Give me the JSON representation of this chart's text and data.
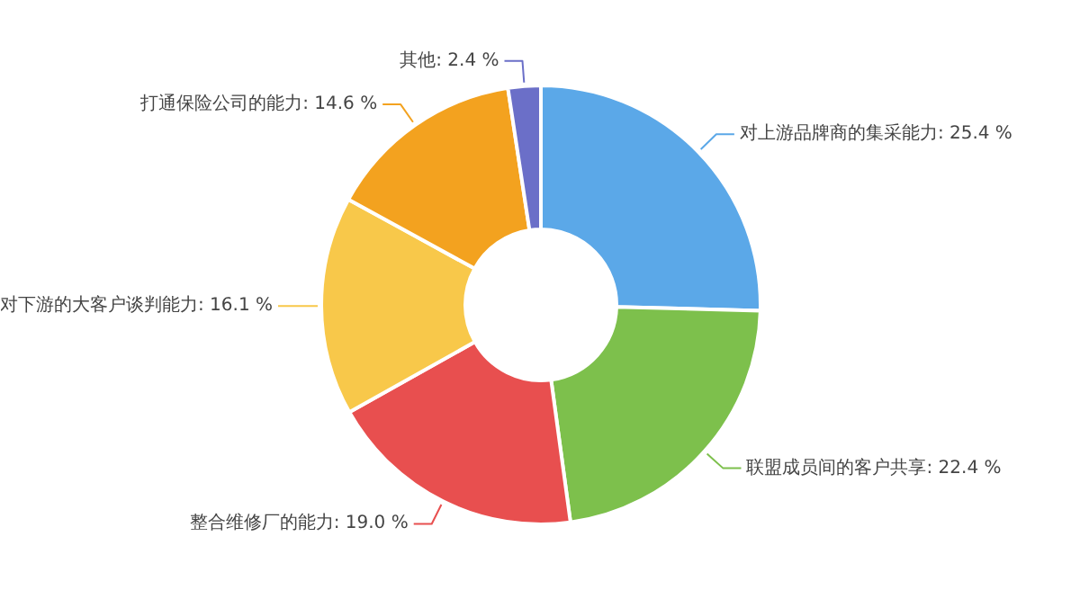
{
  "chart_data": {
    "type": "donut",
    "categories": [
      "对上游品牌商的集采能力",
      "联盟成员间的客户共享",
      "整合维修厂的能力",
      "对下游的大客户谈判能力",
      "打通保险公司的能力",
      "其他"
    ],
    "values": [
      25.4,
      22.4,
      19.0,
      16.1,
      14.6,
      2.4
    ],
    "value_labels": [
      "25.4 %",
      "22.4 %",
      "19.0 %",
      "16.1 %",
      "14.6 %",
      "2.4 %"
    ],
    "colors": [
      "#5ba8e8",
      "#7dc04c",
      "#e84f4f",
      "#f8c84a",
      "#f3a21f",
      "#6b6fc8"
    ],
    "legend": false
  }
}
